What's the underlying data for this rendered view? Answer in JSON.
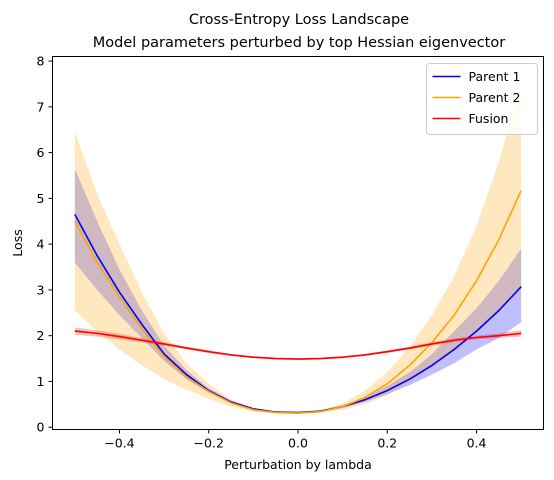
{
  "chart_data": {
    "type": "line",
    "title": "Cross-Entropy Loss Landscape",
    "subtitle": "Model parameters perturbed by top Hessian eigenvector",
    "xlabel": "Perturbation by lambda",
    "ylabel": "Loss",
    "xlim": [
      -0.55,
      0.55
    ],
    "ylim": [
      -0.05,
      8.1
    ],
    "xticks": [
      -0.4,
      -0.2,
      0.0,
      0.2,
      0.4
    ],
    "xtick_labels": [
      "−0.4",
      "−0.2",
      "0.0",
      "0.2",
      "0.4"
    ],
    "yticks": [
      0,
      1,
      2,
      3,
      4,
      5,
      6,
      7,
      8
    ],
    "ytick_labels": [
      "0",
      "1",
      "2",
      "3",
      "4",
      "5",
      "6",
      "7",
      "8"
    ],
    "grid": false,
    "legend_position": "top-right",
    "x": [
      -0.5,
      -0.45,
      -0.4,
      -0.35,
      -0.3,
      -0.25,
      -0.2,
      -0.15,
      -0.1,
      -0.05,
      0.0,
      0.05,
      0.1,
      0.15,
      0.2,
      0.25,
      0.3,
      0.35,
      0.4,
      0.45,
      0.5
    ],
    "series": [
      {
        "name": "Parent 1",
        "color": "#0000ff",
        "values": [
          4.65,
          3.75,
          2.95,
          2.25,
          1.6,
          1.15,
          0.8,
          0.55,
          0.4,
          0.33,
          0.32,
          0.35,
          0.45,
          0.6,
          0.8,
          1.05,
          1.35,
          1.7,
          2.1,
          2.55,
          3.07
        ],
        "lower": [
          3.6,
          3.0,
          2.45,
          1.95,
          1.45,
          1.05,
          0.75,
          0.52,
          0.38,
          0.31,
          0.3,
          0.33,
          0.42,
          0.55,
          0.72,
          0.92,
          1.15,
          1.4,
          1.7,
          1.95,
          2.3
        ],
        "upper": [
          5.65,
          4.5,
          3.45,
          2.55,
          1.78,
          1.25,
          0.85,
          0.58,
          0.42,
          0.35,
          0.34,
          0.37,
          0.48,
          0.65,
          0.9,
          1.2,
          1.6,
          2.1,
          2.6,
          3.2,
          3.9
        ]
      },
      {
        "name": "Parent 2",
        "color": "#ffa500",
        "values": [
          4.5,
          3.6,
          2.85,
          2.15,
          1.55,
          1.1,
          0.78,
          0.53,
          0.38,
          0.32,
          0.31,
          0.34,
          0.45,
          0.65,
          0.95,
          1.35,
          1.85,
          2.45,
          3.2,
          4.1,
          5.17
        ],
        "lower": [
          2.55,
          2.1,
          1.7,
          1.35,
          1.05,
          0.82,
          0.62,
          0.45,
          0.34,
          0.3,
          0.29,
          0.31,
          0.38,
          0.5,
          0.7,
          0.98,
          1.3,
          1.65,
          2.05,
          2.5,
          3.0
        ],
        "upper": [
          6.45,
          5.1,
          4.0,
          2.95,
          2.05,
          1.4,
          0.95,
          0.62,
          0.42,
          0.34,
          0.33,
          0.37,
          0.52,
          0.8,
          1.2,
          1.75,
          2.45,
          3.3,
          4.4,
          5.8,
          7.5
        ]
      },
      {
        "name": "Fusion",
        "color": "#ff0000",
        "values": [
          2.1,
          2.05,
          1.98,
          1.9,
          1.82,
          1.73,
          1.65,
          1.58,
          1.53,
          1.5,
          1.49,
          1.5,
          1.53,
          1.58,
          1.65,
          1.73,
          1.82,
          1.9,
          1.96,
          2.0,
          2.05
        ],
        "lower": [
          2.02,
          1.98,
          1.92,
          1.85,
          1.78,
          1.7,
          1.62,
          1.56,
          1.51,
          1.48,
          1.47,
          1.48,
          1.51,
          1.56,
          1.62,
          1.7,
          1.78,
          1.86,
          1.92,
          1.95,
          1.98
        ],
        "upper": [
          2.18,
          2.12,
          2.04,
          1.95,
          1.86,
          1.76,
          1.68,
          1.6,
          1.55,
          1.52,
          1.51,
          1.52,
          1.55,
          1.6,
          1.68,
          1.76,
          1.86,
          1.94,
          2.0,
          2.05,
          2.12
        ]
      }
    ]
  }
}
